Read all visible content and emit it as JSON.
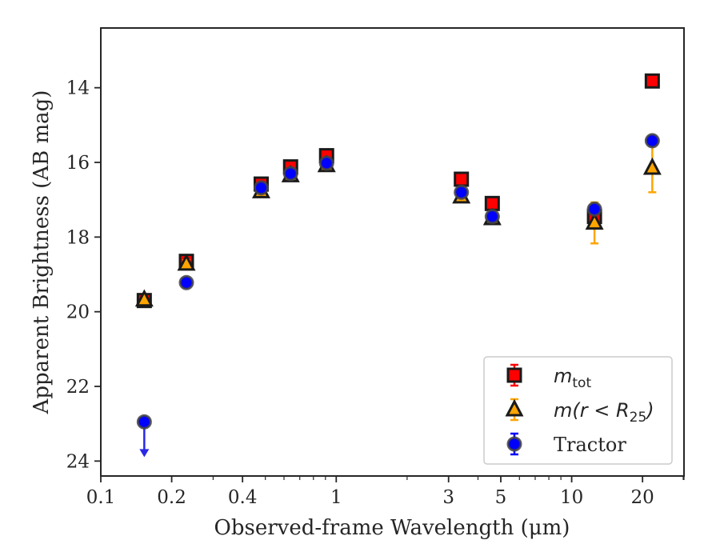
{
  "chart_data": {
    "type": "scatter",
    "xlabel": "Observed-frame Wavelength (μm)",
    "ylabel": "Apparent Brightness (AB mag)",
    "xscale": "log",
    "xlim": [
      0.1,
      30
    ],
    "ylim": [
      24.4,
      12.4
    ],
    "y_inverted": true,
    "xticks": [
      {
        "value": 0.1,
        "label": "0.1"
      },
      {
        "value": 0.2,
        "label": "0.2"
      },
      {
        "value": 0.4,
        "label": "0.4"
      },
      {
        "value": 1,
        "label": "1"
      },
      {
        "value": 3,
        "label": "3"
      },
      {
        "value": 5,
        "label": "5"
      },
      {
        "value": 10,
        "label": "10"
      },
      {
        "value": 20,
        "label": "20"
      }
    ],
    "yticks": [
      {
        "value": 14,
        "label": "14"
      },
      {
        "value": 16,
        "label": "16"
      },
      {
        "value": 18,
        "label": "18"
      },
      {
        "value": 20,
        "label": "20"
      },
      {
        "value": 22,
        "label": "22"
      },
      {
        "value": 24,
        "label": "24"
      }
    ],
    "legend_position": "bottom-right",
    "grid": false,
    "series": [
      {
        "name": "m_tot",
        "legend_main": "m",
        "legend_sub": "tot",
        "marker": "square",
        "color": "#ff0000",
        "edge": "#1a1a1a",
        "x": [
          0.153,
          0.231,
          0.48,
          0.64,
          0.91,
          3.4,
          4.6,
          12.5,
          22.0
        ],
        "y": [
          19.7,
          18.65,
          16.58,
          16.12,
          15.82,
          16.45,
          17.1,
          17.45,
          13.82
        ],
        "yerr": [
          0.05,
          0.1,
          0.05,
          0.05,
          0.05,
          0.05,
          0.05,
          0.1,
          0.05
        ]
      },
      {
        "name": "m(r < R25)",
        "legend_main": "m(r < R",
        "legend_sub": "25",
        "legend_end": ")",
        "marker": "triangle",
        "color": "#ffa500",
        "edge": "#1a1a1a",
        "x": [
          0.153,
          0.231,
          0.48,
          0.64,
          0.91,
          3.4,
          4.6,
          12.5,
          22.0
        ],
        "y": [
          19.68,
          18.72,
          16.78,
          16.35,
          16.08,
          16.92,
          17.5,
          17.62,
          16.15
        ],
        "yerr": [
          0.05,
          0.1,
          0.05,
          0.05,
          0.05,
          0.1,
          0.05,
          0.55,
          0.65
        ]
      },
      {
        "name": "Tractor",
        "legend_main": "Tractor",
        "marker": "circle",
        "color": "#0000ff",
        "edge": "#444444",
        "x": [
          0.153,
          0.231,
          0.48,
          0.64,
          0.91,
          3.4,
          4.6,
          12.5,
          22.0
        ],
        "y": [
          22.95,
          19.22,
          16.68,
          16.3,
          16.02,
          16.8,
          17.45,
          17.25,
          15.42
        ],
        "yerr": [
          0,
          0.05,
          0.05,
          0.05,
          0.05,
          0.05,
          0.05,
          0.05,
          0.05
        ],
        "upper_limit": [
          true,
          false,
          false,
          false,
          false,
          false,
          false,
          false,
          false
        ],
        "upper_limit_arrow_to": 23.85,
        "arrow_color": "#2828e6"
      }
    ]
  }
}
